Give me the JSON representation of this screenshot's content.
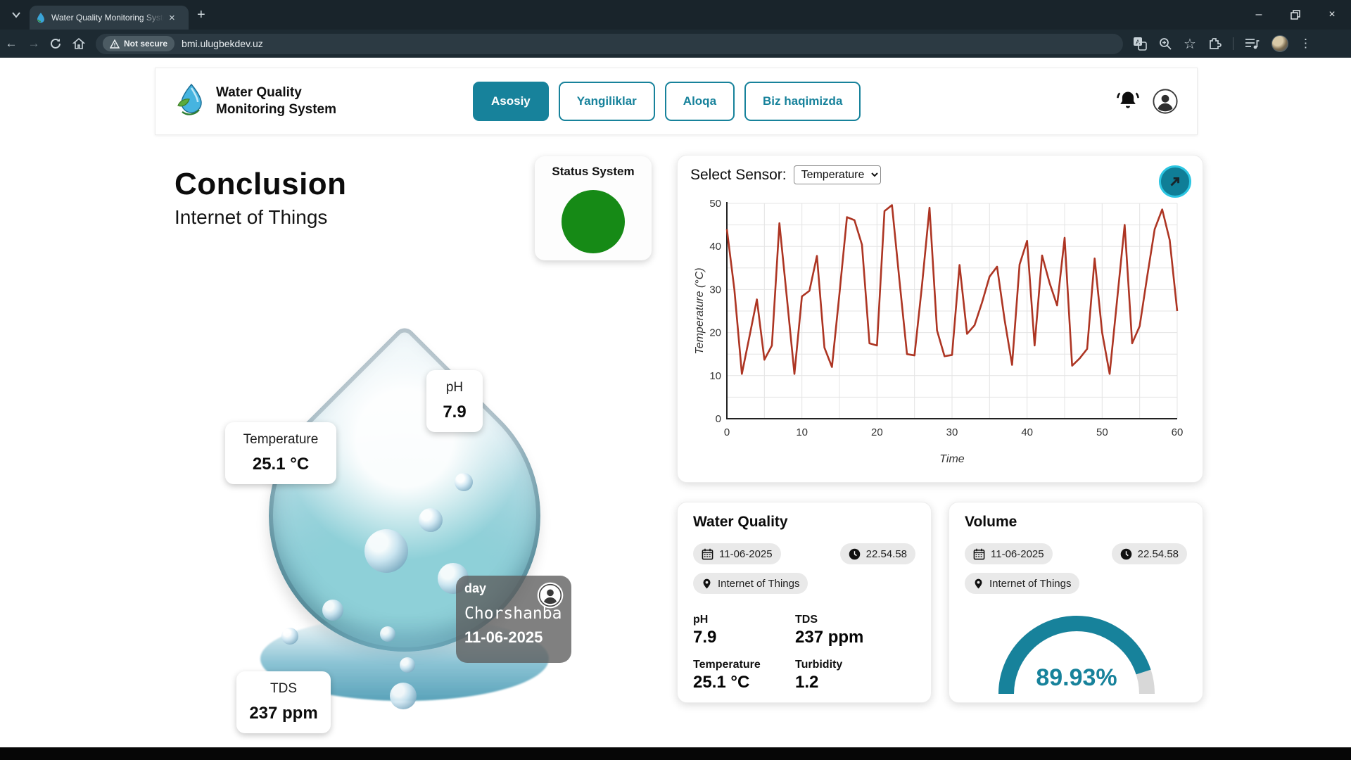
{
  "browser": {
    "tab": {
      "title": "Water Quality Monitoring Syste"
    },
    "address": {
      "security_chip": "Not secure",
      "url": "bmi.ulugbekdev.uz"
    }
  },
  "glyphs": {
    "close": "×",
    "plus": "+",
    "back": "←",
    "forward": "→",
    "star": "☆",
    "kebab": "⋮",
    "minimize": "–"
  },
  "header": {
    "brand_line1": "Water Quality",
    "brand_line2": "Monitoring System",
    "nav": [
      {
        "label": "Asosiy",
        "active": true
      },
      {
        "label": "Yangiliklar",
        "active": false
      },
      {
        "label": "Aloqa",
        "active": false
      },
      {
        "label": "Biz haqimizda",
        "active": false
      }
    ]
  },
  "hero": {
    "title": "Conclusion",
    "subtitle": "Internet of Things",
    "status_card": {
      "title": "Status System",
      "status_color": "#168a16"
    },
    "drop_labels": {
      "temperature": {
        "label": "Temperature",
        "value": "25.1 °C"
      },
      "ph": {
        "label": "pH",
        "value": "7.9"
      },
      "tds": {
        "label": "TDS",
        "value": "237 ppm"
      },
      "day": {
        "label": "day",
        "day_name": "Chorshanba",
        "date": "11-06-2025"
      }
    }
  },
  "sensor_panel": {
    "select_label": "Select Sensor:",
    "selected_option": "Temperature"
  },
  "chart_data": {
    "type": "line",
    "title": "",
    "xlabel": "Time",
    "ylabel": "Temperature (°C)",
    "xlim": [
      0,
      60
    ],
    "ylim": [
      0,
      50
    ],
    "xtick_step": 10,
    "ytick_step": 10,
    "grid_step": 5,
    "grid": true,
    "line_color": "#ad3523",
    "x": [
      0,
      1,
      2,
      3,
      4,
      5,
      6,
      7,
      8,
      9,
      10,
      11,
      12,
      13,
      14,
      15,
      16,
      17,
      18,
      19,
      20,
      21,
      22,
      23,
      24,
      25,
      26,
      27,
      28,
      29,
      30,
      31,
      32,
      33,
      34,
      35,
      36,
      37,
      38,
      39,
      40,
      41,
      42,
      43,
      44,
      45,
      46,
      47,
      48,
      49,
      50,
      51,
      52,
      53,
      54,
      55,
      56,
      57,
      58,
      59,
      60
    ],
    "series": [
      {
        "name": "Temperature",
        "values": [
          44,
          30,
          10.4,
          19,
          27.7,
          13.7,
          17,
          45.4,
          28,
          10.4,
          28.4,
          29.7,
          37.8,
          16.5,
          12,
          29,
          46.8,
          46.1,
          40.4,
          17.5,
          17,
          48.2,
          49.6,
          32,
          15,
          14.7,
          31,
          49,
          20.5,
          14.5,
          14.8,
          35.7,
          19.7,
          21.7,
          27,
          33,
          35.3,
          23,
          12.5,
          35.8,
          41.3,
          17,
          37.9,
          31.5,
          26.3,
          42,
          12.3,
          14,
          16.2,
          37.2,
          20,
          10.4,
          27.7,
          45,
          17.5,
          21.5,
          33,
          44,
          48.6,
          41.5,
          25
        ]
      }
    ]
  },
  "water_quality_card": {
    "title": "Water Quality",
    "date": "11-06-2025",
    "time": "22.54.58",
    "location": "Internet of Things",
    "metrics": [
      {
        "label": "pH",
        "value": "7.9"
      },
      {
        "label": "TDS",
        "value": "237 ppm"
      },
      {
        "label": "Temperature",
        "value": "25.1 °C"
      },
      {
        "label": "Turbidity",
        "value": "1.2"
      }
    ]
  },
  "volume_card": {
    "title": "Volume",
    "date": "11-06-2025",
    "time": "22.54.58",
    "location": "Internet of Things",
    "gauge_percent": 89.93,
    "gauge_label": "89.93%"
  },
  "colors": {
    "accent_teal": "#17829b",
    "chart_line": "#ad3523",
    "status_green": "#168a16",
    "gauge_track": "#d8d8d8",
    "chrome_dark": "#1d2a32"
  }
}
